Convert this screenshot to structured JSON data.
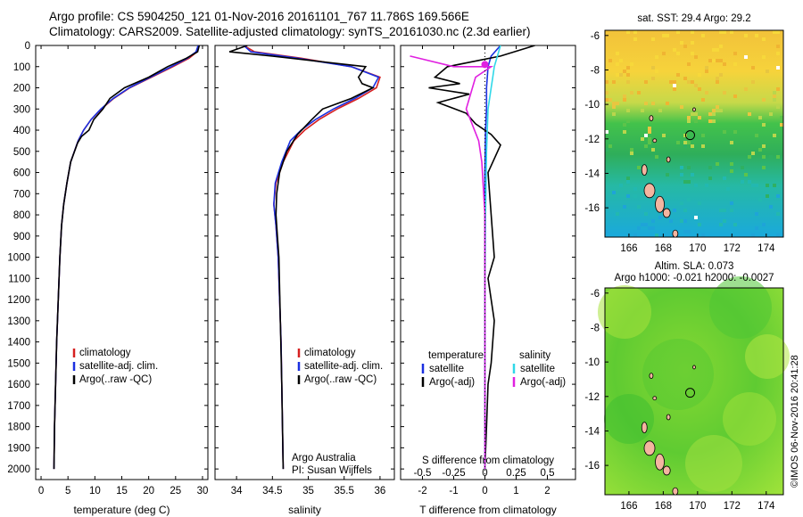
{
  "header": {
    "line1": "Argo profile: CS 5904250_121 01-Nov-2016 20161101_767 11.786S 169.566E",
    "line2": "Climatology: CARS2009. Satellite-adjusted climatology: synTS_20161030.nc (2.3d earlier)"
  },
  "colors": {
    "climatology": "#d62020",
    "satellite": "#1a2fe0",
    "argo": "#000000",
    "salinity_sat": "#30d8e8",
    "salinity_argo": "#e020e0"
  },
  "chart_data": [
    {
      "type": "line",
      "id": "temperature",
      "xlabel": "temperature (deg C)",
      "ylabel": "",
      "xlim": [
        -1,
        31
      ],
      "ylim": [
        2050,
        0
      ],
      "y_inverted": true,
      "xticks": [
        0,
        5,
        10,
        15,
        20,
        25,
        30
      ],
      "yticks": [
        0,
        100,
        200,
        300,
        400,
        500,
        600,
        700,
        800,
        900,
        1000,
        1100,
        1200,
        1300,
        1400,
        1500,
        1600,
        1700,
        1800,
        1900,
        2000
      ],
      "legend": [
        "climatology",
        "satellite-adj. clim.",
        "Argo(..raw -QC)"
      ],
      "series": [
        {
          "name": "climatology",
          "x": [
            29.3,
            29.0,
            27.5,
            24.5,
            20.5,
            16.5,
            13.5,
            11.2,
            9.3,
            7.9,
            6.9,
            5.5,
            4.8,
            4.2,
            3.8,
            3.5,
            3.2,
            2.9,
            2.7,
            2.5,
            2.4
          ],
          "y": [
            0,
            30,
            60,
            100,
            150,
            200,
            250,
            300,
            350,
            400,
            450,
            550,
            650,
            750,
            850,
            1000,
            1200,
            1400,
            1600,
            1800,
            2000
          ]
        },
        {
          "name": "satellite-adj. clim.",
          "x": [
            29.2,
            28.8,
            27.2,
            24.2,
            20.3,
            16.4,
            13.4,
            11.1,
            9.3,
            7.9,
            6.9,
            5.5,
            4.8,
            4.2,
            3.8,
            3.5,
            3.2,
            2.9,
            2.7,
            2.5,
            2.4
          ],
          "y": [
            0,
            30,
            60,
            100,
            150,
            200,
            250,
            300,
            350,
            400,
            450,
            550,
            650,
            750,
            850,
            1000,
            1200,
            1400,
            1600,
            1800,
            2000
          ]
        },
        {
          "name": "Argo(..raw -QC)",
          "x": [
            29.4,
            29.1,
            27.0,
            23.5,
            20.0,
            15.5,
            12.8,
            11.5,
            9.8,
            8.9,
            7.5,
            6.8,
            5.5,
            4.8,
            4.2,
            3.8,
            3.5,
            3.2,
            2.9,
            2.7,
            2.5,
            2.4
          ],
          "y": [
            0,
            30,
            60,
            100,
            150,
            200,
            250,
            300,
            350,
            400,
            430,
            460,
            550,
            650,
            750,
            850,
            1000,
            1200,
            1400,
            1600,
            1800,
            2000
          ]
        }
      ]
    },
    {
      "type": "line",
      "id": "salinity",
      "xlabel": "salinity",
      "ylabel": "",
      "xlim": [
        33.7,
        36.2
      ],
      "ylim": [
        2050,
        0
      ],
      "y_inverted": true,
      "xticks": [
        34,
        34.5,
        35,
        35.5,
        36
      ],
      "legend": [
        "climatology",
        "satellite-adj. clim.",
        "Argo(..raw -QC)"
      ],
      "annotation": [
        "Argo Australia",
        "PI: Susan Wijffels"
      ],
      "series": [
        {
          "name": "climatology",
          "x": [
            34.1,
            34.25,
            34.9,
            35.6,
            36.0,
            35.95,
            35.7,
            35.4,
            35.15,
            34.95,
            34.8,
            34.65,
            34.55,
            34.52,
            34.55,
            34.58,
            34.6,
            34.62,
            34.63,
            34.64,
            34.65
          ],
          "y": [
            0,
            30,
            60,
            100,
            150,
            200,
            250,
            300,
            350,
            400,
            450,
            550,
            650,
            750,
            850,
            1000,
            1200,
            1400,
            1600,
            1800,
            2000
          ]
        },
        {
          "name": "satellite-adj. clim.",
          "x": [
            34.1,
            34.2,
            34.85,
            35.6,
            35.98,
            35.9,
            35.65,
            35.35,
            35.1,
            34.9,
            34.75,
            34.63,
            34.54,
            34.52,
            34.55,
            34.58,
            34.6,
            34.62,
            34.63,
            34.64,
            34.65
          ],
          "y": [
            0,
            30,
            60,
            100,
            150,
            200,
            250,
            300,
            350,
            400,
            450,
            550,
            650,
            750,
            850,
            1000,
            1200,
            1400,
            1600,
            1800,
            2000
          ]
        },
        {
          "name": "Argo(..raw -QC)",
          "x": [
            34.15,
            33.9,
            34.5,
            35.8,
            35.7,
            35.75,
            35.9,
            35.6,
            35.2,
            35.05,
            34.85,
            34.7,
            34.6,
            34.56,
            34.55,
            34.57,
            34.59,
            34.61,
            34.63,
            34.64,
            34.65
          ],
          "y": [
            0,
            30,
            50,
            100,
            150,
            180,
            200,
            250,
            300,
            350,
            420,
            500,
            600,
            700,
            800,
            900,
            1000,
            1300,
            1600,
            1800,
            2000
          ]
        }
      ]
    },
    {
      "type": "line",
      "id": "difference",
      "xlabel": "T difference from climatology",
      "xlabel_top": "S difference from climatology",
      "xlim": [
        -2.7,
        2.9
      ],
      "ylim": [
        2050,
        0
      ],
      "y_inverted": true,
      "xticks": [
        -2,
        -1,
        0,
        1,
        2
      ],
      "xticks_top": [
        "-0.5",
        "-0.25",
        "0",
        "0.25",
        "0.5"
      ],
      "legend_left_title": "temperature",
      "legend_right_title": "salinity",
      "legend": [
        "satellite",
        "Argo(-adj)",
        "satellite",
        "Argo(-adj)"
      ],
      "series": [
        {
          "name": "temperature satellite",
          "x": [
            0.5,
            0.2,
            0.1,
            0.05,
            0.05,
            0.02,
            0,
            0,
            0,
            0,
            0,
            0
          ],
          "y": [
            0,
            50,
            100,
            200,
            300,
            400,
            600,
            800,
            1000,
            1400,
            1800,
            2000
          ]
        },
        {
          "name": "temperature Argo(-adj)",
          "x": [
            1.6,
            0.5,
            -1.2,
            -1.6,
            -0.8,
            -1.8,
            -0.5,
            -1.5,
            -0.6,
            -0.3,
            0.2,
            0.5,
            0.1,
            0.2,
            0.3,
            0.1,
            0.3,
            0.2,
            0.1,
            0.05,
            0
          ],
          "y": [
            0,
            50,
            100,
            150,
            180,
            200,
            230,
            270,
            320,
            370,
            420,
            470,
            600,
            800,
            1000,
            1100,
            1300,
            1500,
            1600,
            1800,
            2000
          ]
        },
        {
          "name": "salinity satellite",
          "x": [
            0.5,
            0.4,
            0.3,
            0.25,
            0.2,
            0.1,
            0.05,
            0.02,
            0,
            0,
            0
          ],
          "y": [
            0,
            50,
            100,
            150,
            200,
            300,
            500,
            800,
            1200,
            1600,
            2000
          ]
        },
        {
          "name": "salinity Argo(-adj)",
          "x": [
            -2.4,
            -1.0,
            0.2,
            -0.3,
            -0.4,
            -0.6,
            -0.2,
            -0.1,
            0,
            0,
            0
          ],
          "y": [
            50,
            100,
            100,
            150,
            200,
            300,
            450,
            550,
            800,
            1200,
            2000
          ]
        }
      ]
    },
    {
      "type": "heatmap",
      "id": "sst-map",
      "title": "sat. SST: 29.4  Argo: 29.2",
      "xticks": [
        166,
        168,
        170,
        172,
        174
      ],
      "yticks": [
        -6,
        -8,
        -10,
        -12,
        -14,
        -16
      ],
      "marker": {
        "lon": 169.566,
        "lat": -11.786
      }
    },
    {
      "type": "heatmap",
      "id": "sla-map",
      "title": [
        "Altim. SLA: 0.073",
        "Argo h1000: -0.021 h2000: -0.0027"
      ],
      "xticks": [
        166,
        168,
        170,
        172,
        174
      ],
      "yticks": [
        -6,
        -8,
        -10,
        -12,
        -14,
        -16
      ],
      "marker": {
        "lon": 169.566,
        "lat": -11.786
      }
    }
  ],
  "credit": "©IMOS 06-Nov-2016 20:41:28"
}
